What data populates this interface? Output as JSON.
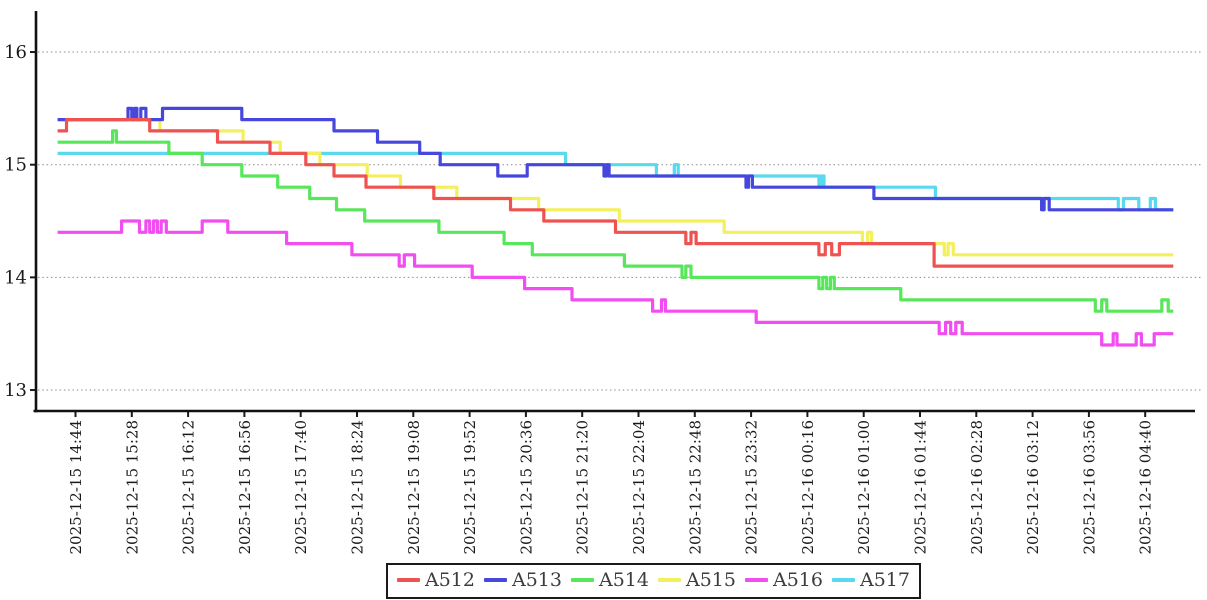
{
  "figure_title": "",
  "legend": {
    "items": [
      {
        "label": "A512",
        "color": "#ee5351"
      },
      {
        "label": "A513",
        "color": "#4747dd"
      },
      {
        "label": "A514",
        "color": "#58e65a"
      },
      {
        "label": "A515",
        "color": "#f3ef5d"
      },
      {
        "label": "A516",
        "color": "#f14df1"
      },
      {
        "label": "A517",
        "color": "#59d9ee"
      }
    ]
  },
  "chart_data": {
    "type": "line",
    "title": "",
    "xlabel": "",
    "ylabel": "",
    "grid": "horizontal-dotted",
    "legend_position": "bottom-center",
    "x_axis": {
      "unit": "minutes since first tick (2025-12-15 14:44), tick spacing 44 min",
      "tick_labels": [
        "2025-12-15 14:44",
        "2025-12-15 15:28",
        "2025-12-15 16:12",
        "2025-12-15 16:56",
        "2025-12-15 17:40",
        "2025-12-15 18:24",
        "2025-12-15 19:08",
        "2025-12-15 19:52",
        "2025-12-15 20:36",
        "2025-12-15 21:20",
        "2025-12-15 22:04",
        "2025-12-15 22:48",
        "2025-12-15 23:32",
        "2025-12-16 00:16",
        "2025-12-16 01:00",
        "2025-12-16 01:44",
        "2025-12-16 02:28",
        "2025-12-16 03:12",
        "2025-12-16 03:56",
        "2025-12-16 04:40"
      ],
      "tick_interval_minutes": 44,
      "range_minutes": [
        -14,
        858
      ]
    },
    "y_axis": {
      "ticks": [
        16,
        15,
        14,
        13
      ],
      "range": [
        12.78,
        16.36
      ]
    },
    "step_mode": "step-after",
    "draw_order": "reversed-legend-order",
    "series": [
      {
        "name": "A512",
        "color": "#ee5351",
        "points": [
          [
            -14,
            15.3
          ],
          [
            -7,
            15.4
          ],
          [
            58,
            15.3
          ],
          [
            111,
            15.2
          ],
          [
            152,
            15.1
          ],
          [
            180,
            15.0
          ],
          [
            202,
            14.9
          ],
          [
            227,
            14.8
          ],
          [
            280,
            14.7
          ],
          [
            340,
            14.6
          ],
          [
            366,
            14.5
          ],
          [
            422,
            14.4
          ],
          [
            477,
            14.3
          ],
          [
            481,
            14.4
          ],
          [
            485,
            14.3
          ],
          [
            581,
            14.2
          ],
          [
            586,
            14.3
          ],
          [
            591,
            14.2
          ],
          [
            597,
            14.3
          ],
          [
            671,
            14.1
          ]
        ]
      },
      {
        "name": "A513",
        "color": "#4747dd",
        "points": [
          [
            -14,
            15.4
          ],
          [
            41,
            15.5
          ],
          [
            44,
            15.4
          ],
          [
            46,
            15.5
          ],
          [
            48,
            15.4
          ],
          [
            51,
            15.5
          ],
          [
            55,
            15.4
          ],
          [
            68,
            15.5
          ],
          [
            130,
            15.4
          ],
          [
            202,
            15.3
          ],
          [
            236,
            15.2
          ],
          [
            269,
            15.1
          ],
          [
            285,
            15.0
          ],
          [
            330,
            14.9
          ],
          [
            353,
            15.0
          ],
          [
            413,
            14.9
          ],
          [
            415,
            15.0
          ],
          [
            417,
            14.9
          ],
          [
            524,
            14.8
          ],
          [
            526,
            14.9
          ],
          [
            529,
            14.8
          ],
          [
            624,
            14.7
          ],
          [
            755,
            14.6
          ],
          [
            757,
            14.7
          ],
          [
            761,
            14.6
          ]
        ]
      },
      {
        "name": "A514",
        "color": "#58e65a",
        "points": [
          [
            -14,
            15.2
          ],
          [
            29,
            15.3
          ],
          [
            32,
            15.2
          ],
          [
            73,
            15.1
          ],
          [
            99,
            15.0
          ],
          [
            130,
            14.9
          ],
          [
            158,
            14.8
          ],
          [
            183,
            14.7
          ],
          [
            204,
            14.6
          ],
          [
            226,
            14.5
          ],
          [
            284,
            14.4
          ],
          [
            335,
            14.3
          ],
          [
            357,
            14.2
          ],
          [
            429,
            14.1
          ],
          [
            474,
            14.0
          ],
          [
            477,
            14.1
          ],
          [
            481,
            14.0
          ],
          [
            581,
            13.9
          ],
          [
            584,
            14.0
          ],
          [
            587,
            13.9
          ],
          [
            590,
            14.0
          ],
          [
            593,
            13.9
          ],
          [
            645,
            13.8
          ],
          [
            797,
            13.7
          ],
          [
            802,
            13.8
          ],
          [
            806,
            13.7
          ],
          [
            849,
            13.8
          ],
          [
            854,
            13.7
          ]
        ]
      },
      {
        "name": "A515",
        "color": "#f3ef5d",
        "points": [
          [
            -14,
            15.4
          ],
          [
            66,
            15.3
          ],
          [
            131,
            15.2
          ],
          [
            160,
            15.1
          ],
          [
            191,
            15.0
          ],
          [
            228,
            14.9
          ],
          [
            254,
            14.8
          ],
          [
            298,
            14.7
          ],
          [
            362,
            14.6
          ],
          [
            425,
            14.5
          ],
          [
            507,
            14.4
          ],
          [
            615,
            14.3
          ],
          [
            619,
            14.4
          ],
          [
            622,
            14.3
          ],
          [
            679,
            14.2
          ],
          [
            682,
            14.3
          ],
          [
            686,
            14.2
          ]
        ]
      },
      {
        "name": "A516",
        "color": "#f14df1",
        "points": [
          [
            -14,
            14.4
          ],
          [
            36,
            14.5
          ],
          [
            50,
            14.4
          ],
          [
            55,
            14.5
          ],
          [
            58,
            14.4
          ],
          [
            61,
            14.5
          ],
          [
            64,
            14.4
          ],
          [
            67,
            14.5
          ],
          [
            71,
            14.4
          ],
          [
            99,
            14.5
          ],
          [
            119,
            14.4
          ],
          [
            165,
            14.3
          ],
          [
            216,
            14.2
          ],
          [
            253,
            14.1
          ],
          [
            257,
            14.2
          ],
          [
            265,
            14.1
          ],
          [
            310,
            14.0
          ],
          [
            351,
            13.9
          ],
          [
            388,
            13.8
          ],
          [
            451,
            13.7
          ],
          [
            458,
            13.8
          ],
          [
            461,
            13.7
          ],
          [
            532,
            13.6
          ],
          [
            675,
            13.5
          ],
          [
            680,
            13.6
          ],
          [
            684,
            13.5
          ],
          [
            688,
            13.6
          ],
          [
            693,
            13.5
          ],
          [
            802,
            13.4
          ],
          [
            811,
            13.5
          ],
          [
            814,
            13.4
          ],
          [
            829,
            13.5
          ],
          [
            833,
            13.4
          ],
          [
            843,
            13.5
          ]
        ]
      },
      {
        "name": "A517",
        "color": "#59d9ee",
        "points": [
          [
            -14,
            15.1
          ],
          [
            383,
            15.0
          ],
          [
            454,
            14.9
          ],
          [
            468,
            15.0
          ],
          [
            471,
            14.9
          ],
          [
            581,
            14.8
          ],
          [
            583,
            14.9
          ],
          [
            585,
            14.8
          ],
          [
            672,
            14.7
          ],
          [
            815,
            14.6
          ],
          [
            819,
            14.7
          ],
          [
            831,
            14.6
          ],
          [
            840,
            14.7
          ],
          [
            844,
            14.6
          ]
        ]
      }
    ]
  }
}
